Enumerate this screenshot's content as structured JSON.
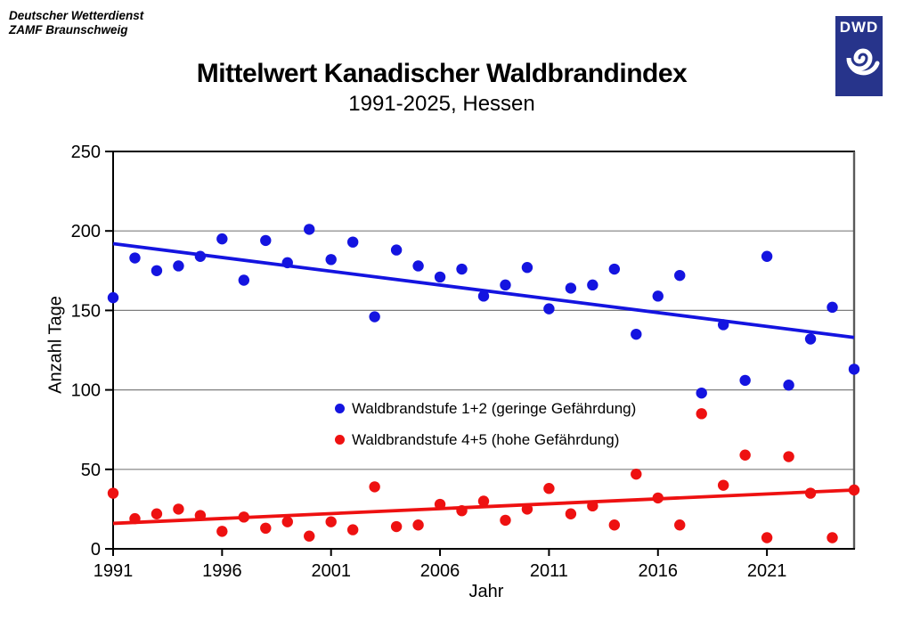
{
  "header": {
    "line1": "Deutscher Wetterdienst",
    "line2": "ZAMF Braunschweig"
  },
  "logo": {
    "text": "DWD",
    "color": "#27348b"
  },
  "title": "Mittelwert Kanadischer Waldbrandindex",
  "subtitle": "1991-2025, Hessen",
  "chart_data": {
    "type": "scatter",
    "title": "Mittelwert Kanadischer Waldbrandindex",
    "subtitle": "1991-2025, Hessen",
    "xlabel": "Jahr",
    "ylabel": "Anzahl Tage",
    "xlim": [
      1991,
      2025
    ],
    "ylim": [
      0,
      250
    ],
    "xticks": [
      1991,
      1996,
      2001,
      2006,
      2011,
      2016,
      2021
    ],
    "yticks": [
      0,
      50,
      100,
      150,
      200,
      250
    ],
    "grid_y": [
      50,
      100,
      150,
      200
    ],
    "grid": "horizontal only",
    "legend_position": "inside center-left",
    "x": [
      1991,
      1992,
      1993,
      1994,
      1995,
      1996,
      1997,
      1998,
      1999,
      2000,
      2001,
      2002,
      2003,
      2004,
      2005,
      2006,
      2007,
      2008,
      2009,
      2010,
      2011,
      2012,
      2013,
      2014,
      2015,
      2016,
      2017,
      2018,
      2019,
      2020,
      2021,
      2022,
      2023,
      2024,
      2025
    ],
    "series": [
      {
        "name": "Waldbrandstufe 1+2 (geringe Gefährdung)",
        "color": "#1414e0",
        "marker": "circle",
        "values": [
          158,
          183,
          175,
          178,
          184,
          195,
          169,
          194,
          180,
          201,
          182,
          193,
          146,
          188,
          178,
          171,
          176,
          159,
          166,
          177,
          151,
          164,
          166,
          176,
          135,
          159,
          172,
          98,
          141,
          106,
          184,
          103,
          132,
          152,
          113
        ],
        "trend": {
          "start": 192,
          "end": 133
        }
      },
      {
        "name": "Waldbrandstufe 4+5 (hohe Gefährdung)",
        "color": "#ee1111",
        "marker": "circle",
        "values": [
          35,
          19,
          22,
          25,
          21,
          11,
          20,
          13,
          17,
          8,
          17,
          12,
          39,
          14,
          15,
          28,
          24,
          30,
          18,
          25,
          38,
          22,
          27,
          15,
          47,
          32,
          15,
          85,
          40,
          59,
          7,
          58,
          35,
          7,
          37
        ],
        "trend": {
          "start": 16,
          "end": 37
        }
      }
    ]
  }
}
